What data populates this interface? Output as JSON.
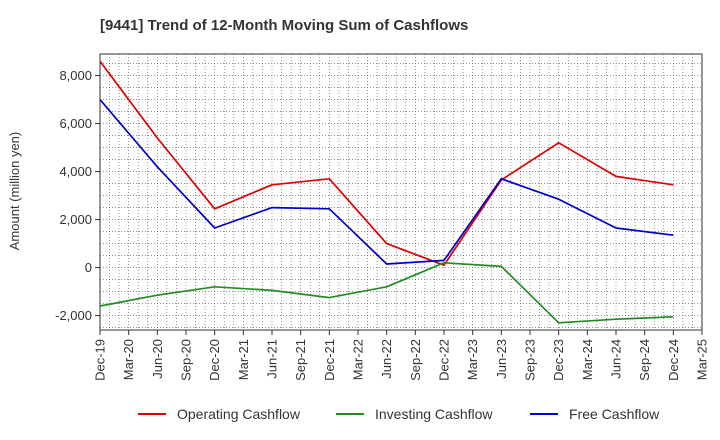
{
  "chart_data": {
    "type": "line",
    "title": "[9441]  Trend of 12-Month Moving Sum of Cashflows",
    "ylabel": "Amount (million yen)",
    "xlabel": "",
    "ylim": [
      -2600,
      8900
    ],
    "yticks": [
      -2000,
      0,
      2000,
      4000,
      6000,
      8000
    ],
    "ytick_labels": [
      "-2,000",
      "0",
      "2,000",
      "4,000",
      "6,000",
      "8,000"
    ],
    "categories": [
      "Dec-19",
      "Mar-20",
      "Jun-20",
      "Sep-20",
      "Dec-20",
      "Mar-21",
      "Jun-21",
      "Sep-21",
      "Dec-21",
      "Mar-22",
      "Jun-22",
      "Sep-22",
      "Dec-22",
      "Mar-23",
      "Jun-23",
      "Sep-23",
      "Dec-23",
      "Mar-24",
      "Jun-24",
      "Sep-24",
      "Dec-24",
      "Mar-25"
    ],
    "grid": true,
    "legend_position": "bottom",
    "series": [
      {
        "name": "Operating Cashflow",
        "color": "#e00000",
        "points": [
          {
            "x": "Dec-19",
            "y": 8600
          },
          {
            "x": "Jun-20",
            "y": 5400
          },
          {
            "x": "Dec-20",
            "y": 2450
          },
          {
            "x": "Jun-21",
            "y": 3450
          },
          {
            "x": "Dec-21",
            "y": 3700
          },
          {
            "x": "Jun-22",
            "y": 1000
          },
          {
            "x": "Dec-22",
            "y": 100
          },
          {
            "x": "Jun-23",
            "y": 3650
          },
          {
            "x": "Dec-23",
            "y": 5200
          },
          {
            "x": "Jun-24",
            "y": 3800
          },
          {
            "x": "Dec-24",
            "y": 3450
          }
        ]
      },
      {
        "name": "Investing Cashflow",
        "color": "#228b22",
        "points": [
          {
            "x": "Dec-19",
            "y": -1600
          },
          {
            "x": "Jun-20",
            "y": -1150
          },
          {
            "x": "Dec-20",
            "y": -800
          },
          {
            "x": "Jun-21",
            "y": -950
          },
          {
            "x": "Dec-21",
            "y": -1250
          },
          {
            "x": "Jun-22",
            "y": -800
          },
          {
            "x": "Dec-22",
            "y": 200
          },
          {
            "x": "Jun-23",
            "y": 50
          },
          {
            "x": "Dec-23",
            "y": -2300
          },
          {
            "x": "Jun-24",
            "y": -2150
          },
          {
            "x": "Dec-24",
            "y": -2050
          }
        ]
      },
      {
        "name": "Free Cashflow",
        "color": "#0000cc",
        "points": [
          {
            "x": "Dec-19",
            "y": 7000
          },
          {
            "x": "Jun-20",
            "y": 4200
          },
          {
            "x": "Dec-20",
            "y": 1650
          },
          {
            "x": "Jun-21",
            "y": 2500
          },
          {
            "x": "Dec-21",
            "y": 2450
          },
          {
            "x": "Jun-22",
            "y": 150
          },
          {
            "x": "Dec-22",
            "y": 300
          },
          {
            "x": "Jun-23",
            "y": 3700
          },
          {
            "x": "Dec-23",
            "y": 2850
          },
          {
            "x": "Jun-24",
            "y": 1650
          },
          {
            "x": "Dec-24",
            "y": 1350
          }
        ]
      }
    ]
  }
}
